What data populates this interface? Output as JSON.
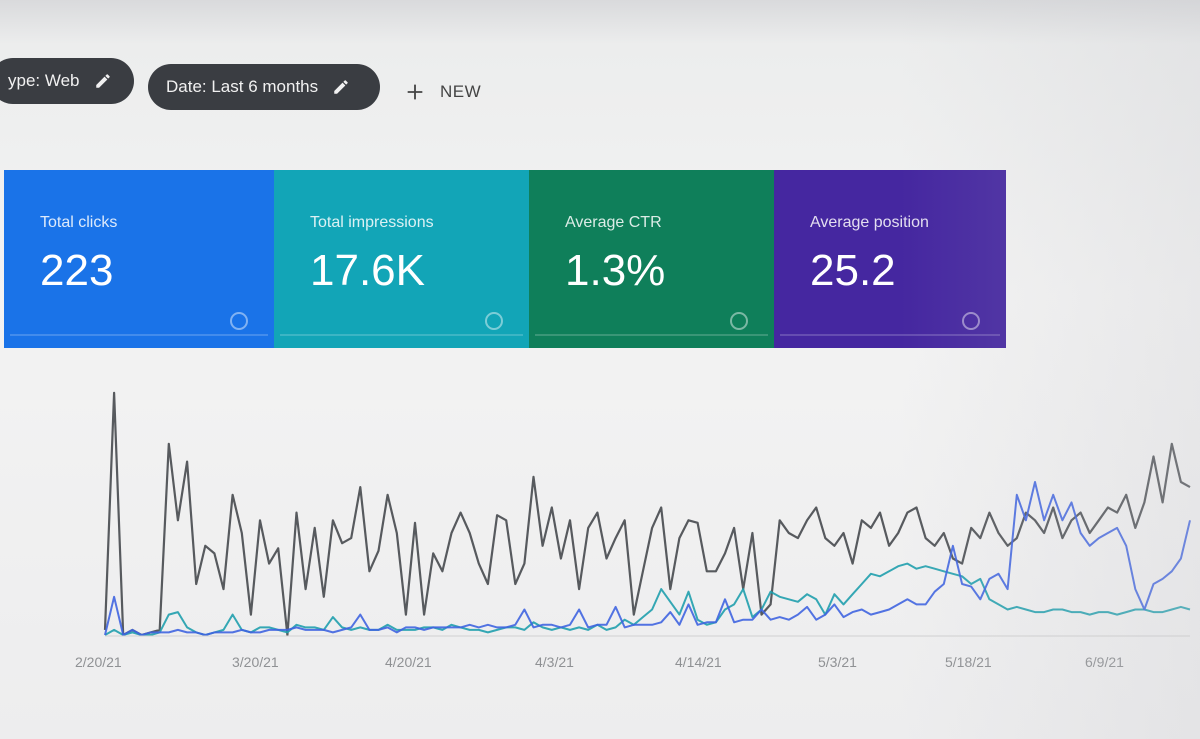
{
  "filters": {
    "type_chip": "ype: Web",
    "date_chip": "Date: Last 6 months",
    "new_label": "NEW"
  },
  "metrics": [
    {
      "label": "Total clicks",
      "value": "223",
      "color": "#1a73e8"
    },
    {
      "label": "Total impressions",
      "value": "17.6K",
      "color": "#12a5b7"
    },
    {
      "label": "Average CTR",
      "value": "1.3%",
      "color": "#0f7f5a"
    },
    {
      "label": "Average position",
      "value": "25.2",
      "color": "#4527a0"
    }
  ],
  "chart_data": {
    "type": "line",
    "x_tick_labels": [
      "2/20/21",
      "3/20/21",
      "4/20/21",
      "4/3/21",
      "4/14/21",
      "5/3/21",
      "5/18/21",
      "6/9/21"
    ],
    "series": [
      {
        "color": "#3c3f44",
        "values": [
          2,
          95,
          0,
          2,
          0,
          1,
          2,
          75,
          45,
          68,
          20,
          35,
          32,
          18,
          55,
          40,
          8,
          45,
          28,
          34,
          0,
          48,
          18,
          42,
          15,
          45,
          36,
          38,
          58,
          25,
          33,
          55,
          40,
          8,
          44,
          8,
          32,
          25,
          40,
          48,
          40,
          28,
          20,
          47,
          45,
          20,
          28,
          62,
          35,
          50,
          30,
          45,
          18,
          42,
          48,
          30,
          38,
          45,
          8,
          25,
          42,
          50,
          18,
          38,
          45,
          44,
          25,
          25,
          32,
          42,
          18,
          40,
          8,
          12,
          45,
          40,
          38,
          45,
          50,
          38,
          35,
          40,
          28,
          45,
          42,
          48,
          35,
          40,
          48,
          50,
          38,
          35,
          40,
          30,
          28,
          42,
          38,
          48,
          40,
          35,
          38,
          48,
          45,
          40,
          50,
          38,
          45,
          48,
          40,
          45,
          50,
          48,
          55,
          42,
          52,
          70,
          52,
          75,
          60,
          58
        ]
      },
      {
        "color": "#1f9fad",
        "values": [
          0,
          2,
          0,
          1,
          0,
          0,
          1,
          8,
          9,
          3,
          1,
          0,
          1,
          2,
          8,
          2,
          1,
          3,
          3,
          2,
          1,
          4,
          3,
          3,
          2,
          7,
          3,
          2,
          3,
          2,
          2,
          4,
          2,
          2,
          2,
          3,
          3,
          2,
          4,
          3,
          2,
          2,
          1,
          2,
          3,
          3,
          2,
          5,
          3,
          2,
          3,
          2,
          3,
          2,
          4,
          2,
          3,
          6,
          4,
          7,
          10,
          18,
          13,
          8,
          17,
          6,
          4,
          5,
          10,
          12,
          18,
          7,
          10,
          17,
          15,
          14,
          13,
          16,
          14,
          8,
          16,
          12,
          16,
          20,
          24,
          23,
          25,
          27,
          28,
          26,
          27,
          26,
          25,
          24,
          23,
          20,
          22,
          14,
          12,
          10,
          11,
          10,
          9,
          9,
          10,
          10,
          9,
          9,
          8,
          9,
          9,
          8,
          9,
          10,
          10,
          9,
          9,
          10,
          11,
          10
        ]
      },
      {
        "color": "#3f64e0",
        "values": [
          0,
          15,
          0,
          2,
          0,
          1,
          1,
          1,
          2,
          1,
          1,
          0,
          1,
          1,
          1,
          2,
          1,
          1,
          2,
          2,
          2,
          3,
          2,
          2,
          2,
          1,
          2,
          3,
          8,
          2,
          2,
          3,
          1,
          3,
          3,
          2,
          3,
          3,
          3,
          3,
          4,
          3,
          4,
          3,
          3,
          4,
          10,
          3,
          4,
          4,
          3,
          4,
          10,
          3,
          4,
          4,
          11,
          3,
          4,
          4,
          4,
          5,
          9,
          4,
          12,
          4,
          5,
          5,
          14,
          5,
          6,
          6,
          10,
          6,
          7,
          6,
          8,
          11,
          6,
          8,
          12,
          7,
          9,
          10,
          8,
          9,
          10,
          12,
          14,
          12,
          12,
          17,
          20,
          35,
          20,
          19,
          14,
          22,
          24,
          18,
          55,
          45,
          60,
          45,
          55,
          45,
          52,
          40,
          35,
          38,
          40,
          42,
          35,
          18,
          10,
          20,
          22,
          25,
          30,
          45
        ]
      }
    ]
  }
}
